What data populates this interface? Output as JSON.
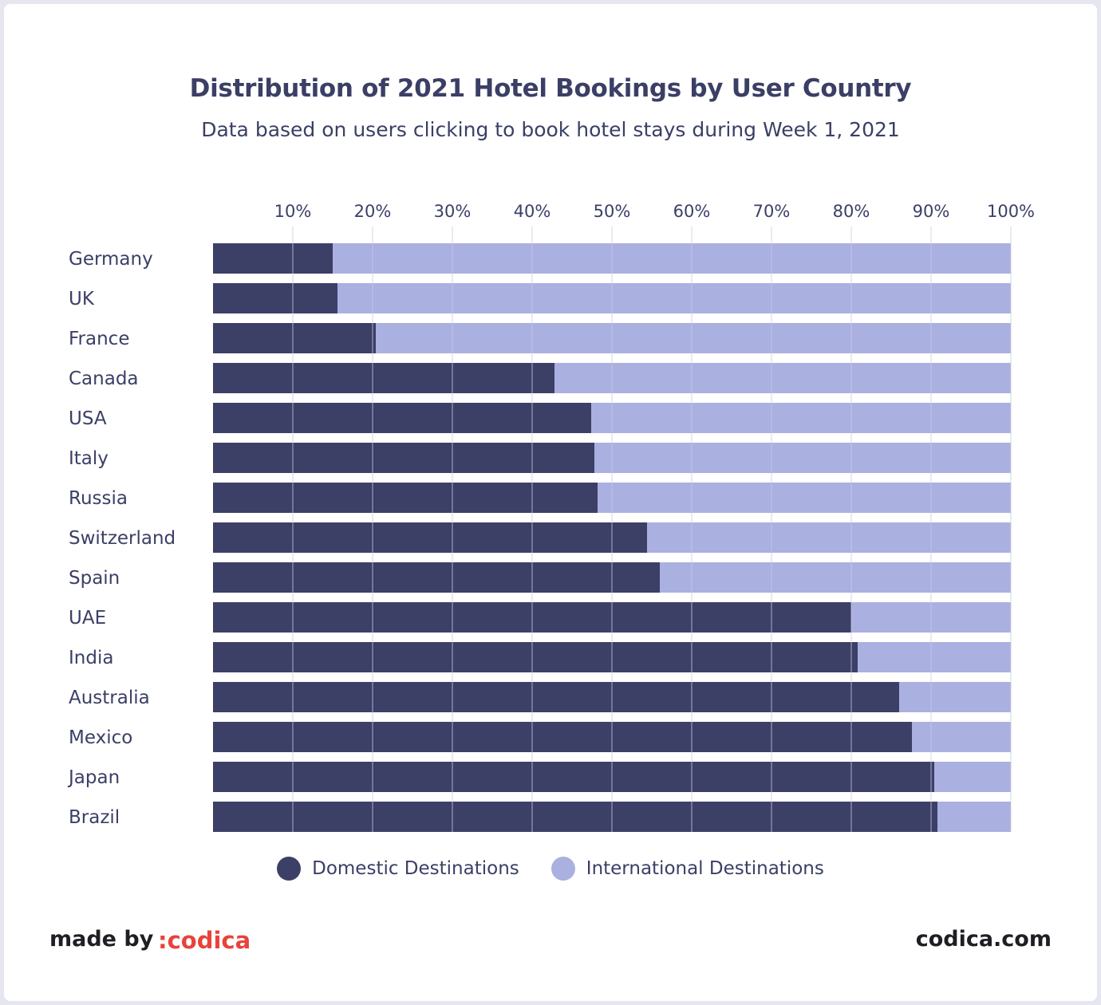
{
  "footer": {
    "made_by": "made by",
    "brand": ":codica",
    "site": "codica.com"
  },
  "colors": {
    "domestic": "#3c3f66",
    "international": "#aab0e0",
    "grid": "#c9cbe3",
    "text": "#3b3f66",
    "brand": "#e8433b"
  },
  "chart_data": {
    "type": "bar",
    "orientation": "horizontal",
    "stacked": true,
    "title": "Distribution of 2021 Hotel Bookings by User Country",
    "subtitle": "Data based on users clicking to book hotel stays during Week 1, 2021",
    "xlim": [
      0,
      100
    ],
    "x_ticks": [
      "10%",
      "20%",
      "30%",
      "40%",
      "50%",
      "60%",
      "70%",
      "80%",
      "90%",
      "100%"
    ],
    "grid": true,
    "legend_position": "bottom",
    "categories": [
      "Germany",
      "UK",
      "France",
      "Canada",
      "USA",
      "Italy",
      "Russia",
      "Switzerland",
      "Spain",
      "UAE",
      "India",
      "Australia",
      "Mexico",
      "Japan",
      "Brazil"
    ],
    "series": [
      {
        "name": "Domestic Destinations",
        "values": [
          15,
          15.6,
          20.4,
          42.8,
          47.4,
          47.8,
          48.2,
          54.4,
          56,
          80,
          80.8,
          86,
          87.6,
          90.4,
          90.8
        ]
      },
      {
        "name": "International Destinations",
        "values": [
          85,
          84.4,
          79.6,
          57.2,
          52.6,
          52.2,
          51.8,
          45.6,
          44,
          20,
          19.2,
          14,
          12.4,
          9.6,
          9.2
        ]
      }
    ]
  }
}
